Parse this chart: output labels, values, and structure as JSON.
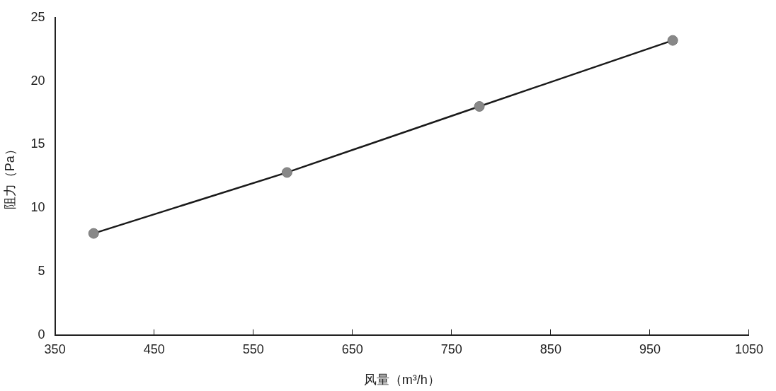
{
  "chart_data": {
    "type": "line",
    "xlabel": "风量（m³/h）",
    "ylabel": "阻力（Pa）",
    "x": [
      389,
      584,
      778,
      973
    ],
    "series": [
      {
        "color": "#1a1a1a",
        "values": [
          8.0,
          12.8,
          18.0,
          23.2
        ]
      }
    ],
    "xlim": [
      350,
      1050
    ],
    "xticks": [
      350,
      450,
      550,
      650,
      750,
      850,
      950,
      1050
    ],
    "ylim": [
      0,
      25
    ],
    "yticks": [
      0,
      5,
      10,
      15,
      20,
      25
    ],
    "grid": false,
    "legend": false,
    "marker": "circle",
    "line_style": "solid"
  }
}
